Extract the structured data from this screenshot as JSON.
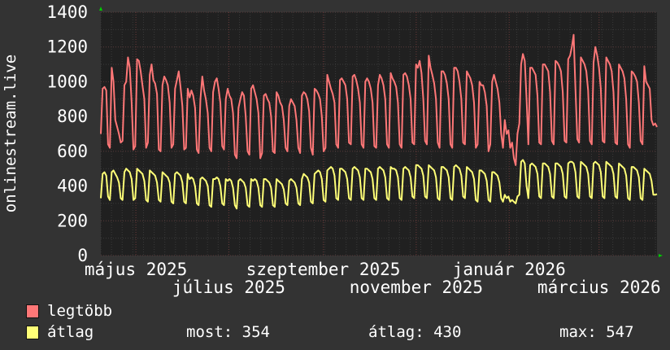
{
  "chart_data": {
    "type": "line",
    "ylabel": "onlinestream.live",
    "ylim": [
      0,
      1400
    ],
    "yticks": [
      "0",
      "200",
      "400",
      "600",
      "800",
      "1000",
      "1200",
      "1400"
    ],
    "xlim": [
      "2025-04-08",
      "2026-04-08"
    ],
    "xticks": [
      {
        "label": "május 2025",
        "date": "2025-05-01"
      },
      {
        "label": "július 2025",
        "date": "2025-07-01"
      },
      {
        "label": "szeptember 2025",
        "date": "2025-09-01"
      },
      {
        "label": "november 2025",
        "date": "2025-11-01"
      },
      {
        "label": "január 2026",
        "date": "2026-01-01"
      },
      {
        "label": "március 2026",
        "date": "2026-03-01"
      }
    ],
    "grid": true,
    "background": "#202020",
    "series": [
      {
        "name": "legtöbb",
        "color": "#ff7777",
        "values": [
          700,
          960,
          970,
          950,
          640,
          620,
          1080,
          1000,
          780,
          740,
          700,
          650,
          660,
          980,
          1000,
          1140,
          1080,
          880,
          610,
          630,
          1130,
          1120,
          1060,
          980,
          900,
          620,
          650,
          1040,
          1100,
          1010,
          990,
          930,
          610,
          600,
          980,
          1030,
          1010,
          980,
          880,
          620,
          640,
          960,
          1010,
          1060,
          970,
          860,
          610,
          620,
          960,
          910,
          950,
          920,
          850,
          610,
          590,
          900,
          1030,
          950,
          900,
          820,
          620,
          600,
          940,
          1000,
          1020,
          960,
          880,
          630,
          610,
          900,
          960,
          920,
          900,
          820,
          580,
          560,
          850,
          900,
          940,
          920,
          800,
          600,
          580,
          960,
          980,
          940,
          900,
          820,
          560,
          590,
          920,
          930,
          900,
          880,
          800,
          600,
          590,
          940,
          920,
          880,
          860,
          780,
          620,
          600,
          860,
          900,
          880,
          860,
          780,
          620,
          590,
          920,
          940,
          930,
          900,
          830,
          620,
          580,
          960,
          950,
          930,
          900,
          800,
          600,
          620,
          1040,
          1000,
          960,
          930,
          880,
          640,
          620,
          1010,
          1020,
          1000,
          980,
          900,
          650,
          640,
          1030,
          1040,
          1010,
          960,
          880,
          640,
          620,
          1000,
          1020,
          1000,
          960,
          880,
          630,
          620,
          980,
          1040,
          1020,
          980,
          900,
          640,
          620,
          1050,
          1020,
          1000,
          970,
          880,
          640,
          620,
          1040,
          1050,
          1030,
          980,
          900,
          650,
          640,
          1100,
          1080,
          1120,
          1050,
          900,
          660,
          640,
          1150,
          1080,
          1040,
          990,
          900,
          650,
          620,
          1060,
          1060,
          1040,
          990,
          900,
          640,
          620,
          1080,
          1080,
          1060,
          1000,
          900,
          650,
          640,
          1060,
          1040,
          1020,
          980,
          880,
          620,
          640,
          1000,
          980,
          980,
          940,
          860,
          600,
          640,
          1000,
          1040,
          1000,
          960,
          880,
          700,
          620,
          780,
          700,
          720,
          620,
          650,
          560,
          520,
          700,
          760,
          1100,
          1160,
          1120,
          900,
          640,
          1080,
          1080,
          1060,
          1040,
          920,
          650,
          640,
          1100,
          1100,
          1080,
          1060,
          940,
          660,
          640,
          1120,
          1110,
          1090,
          1060,
          940,
          660,
          650,
          1130,
          1150,
          1200,
          1270,
          960,
          670,
          650,
          1140,
          1120,
          1100,
          1060,
          950,
          660,
          640,
          1110,
          1200,
          1150,
          1080,
          960,
          660,
          650,
          1140,
          1120,
          1100,
          1060,
          940,
          650,
          640,
          1100,
          1080,
          1060,
          1020,
          900,
          640,
          620,
          1060,
          1050,
          1030,
          1000,
          880,
          660,
          640,
          1090,
          1000,
          980,
          960,
          780,
          750,
          760,
          740
        ]
      },
      {
        "name": "átlag",
        "color": "#ffff77",
        "values": [
          330,
          470,
          480,
          460,
          340,
          320,
          480,
          490,
          470,
          450,
          420,
          330,
          320,
          480,
          500,
          490,
          480,
          440,
          320,
          330,
          500,
          490,
          480,
          470,
          430,
          320,
          310,
          490,
          480,
          470,
          460,
          420,
          320,
          310,
          480,
          470,
          460,
          450,
          420,
          310,
          300,
          470,
          480,
          470,
          460,
          420,
          310,
          300,
          470,
          440,
          450,
          440,
          400,
          300,
          290,
          440,
          450,
          440,
          430,
          400,
          290,
          280,
          440,
          440,
          450,
          440,
          400,
          300,
          290,
          440,
          430,
          440,
          430,
          390,
          290,
          270,
          430,
          440,
          430,
          420,
          390,
          290,
          280,
          440,
          430,
          440,
          430,
          390,
          290,
          280,
          440,
          440,
          430,
          420,
          390,
          290,
          280,
          440,
          430,
          420,
          410,
          380,
          300,
          290,
          430,
          440,
          430,
          420,
          390,
          300,
          290,
          440,
          470,
          460,
          450,
          420,
          310,
          300,
          470,
          480,
          490,
          480,
          440,
          320,
          310,
          490,
          500,
          510,
          500,
          460,
          330,
          320,
          500,
          500,
          490,
          480,
          440,
          330,
          320,
          500,
          510,
          500,
          490,
          450,
          330,
          320,
          500,
          500,
          490,
          480,
          440,
          330,
          320,
          500,
          510,
          500,
          490,
          450,
          330,
          320,
          510,
          500,
          500,
          490,
          450,
          330,
          320,
          500,
          510,
          500,
          490,
          450,
          340,
          330,
          520,
          520,
          510,
          500,
          460,
          340,
          330,
          520,
          510,
          500,
          490,
          450,
          330,
          320,
          510,
          510,
          500,
          490,
          450,
          330,
          320,
          510,
          520,
          510,
          500,
          460,
          340,
          330,
          510,
          500,
          490,
          480,
          440,
          320,
          310,
          490,
          490,
          480,
          470,
          430,
          320,
          310,
          480,
          480,
          470,
          460,
          420,
          330,
          310,
          350,
          330,
          340,
          310,
          320,
          310,
          300,
          340,
          350,
          540,
          550,
          530,
          400,
          330,
          520,
          530,
          520,
          510,
          470,
          340,
          330,
          530,
          530,
          520,
          510,
          470,
          340,
          330,
          530,
          530,
          520,
          510,
          470,
          340,
          330,
          530,
          540,
          540,
          530,
          480,
          340,
          330,
          540,
          530,
          520,
          510,
          470,
          340,
          330,
          530,
          540,
          530,
          520,
          480,
          340,
          330,
          540,
          530,
          520,
          510,
          470,
          340,
          330,
          530,
          520,
          510,
          500,
          460,
          330,
          320,
          510,
          510,
          500,
          490,
          450,
          330,
          320,
          500,
          490,
          480,
          470,
          430,
          350,
          350,
          354
        ]
      }
    ]
  },
  "legend": {
    "items": [
      {
        "label": "legtöbb",
        "color": "#ff7777"
      },
      {
        "label": "átlag",
        "color": "#ffff77"
      }
    ],
    "stats": {
      "current": "most: 354",
      "average": "átlag: 430",
      "max": "max: 547"
    }
  }
}
